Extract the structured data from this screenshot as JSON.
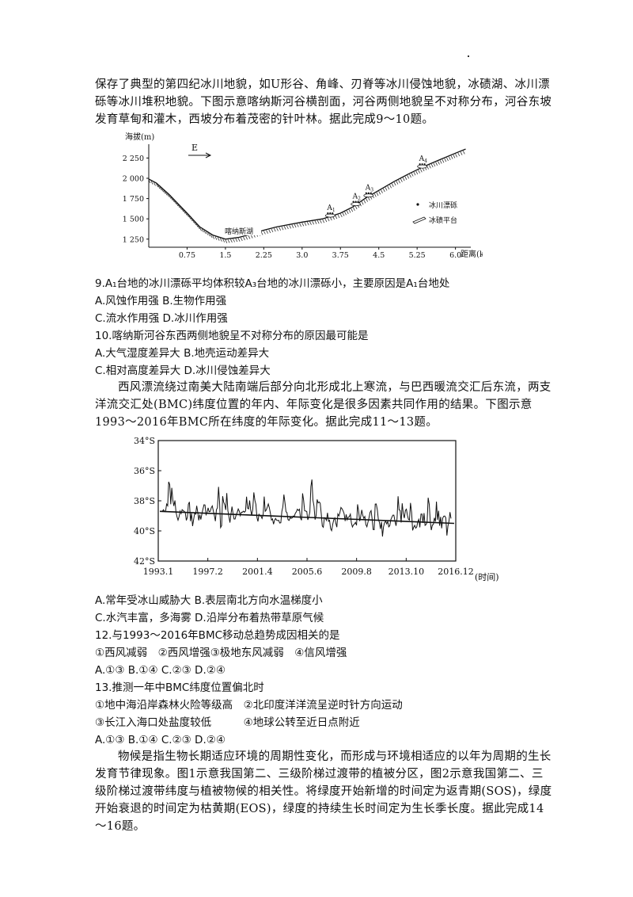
{
  "intro_1": "保存了典型的第四纪冰川地貌，如U形谷、角峰、刃脊等冰川侵蚀地貌，冰碛湖、冰川漂砾等冰川堆积地貌。下图示意喀纳斯河谷横剖面，河谷两侧地貌呈不对称分布，河谷东坡发育草甸和灌木，西坡分布着茂密的针叶林。据此完成9～10题。",
  "fig1": {
    "ylabel": "海拔(m)",
    "xlabel": "距离(km)",
    "direction": "E",
    "lake": "喀纳斯湖",
    "legend_boulder": "冰川漂砾",
    "legend_platform": "冰碛平台",
    "sites": [
      "A",
      "A",
      "A",
      "A"
    ],
    "site_subs": [
      "1",
      "2",
      "3",
      "4"
    ],
    "chart_data": {
      "type": "line",
      "xlabel": "距离(km)",
      "ylabel": "海拔(m)",
      "x_ticks": [
        "0.75",
        "1.5",
        "2.25",
        "3.0",
        "3.75",
        "4.5",
        "5.25",
        "6.0"
      ],
      "y_ticks": [
        "1 250",
        "1 500",
        "1 750",
        "2 000",
        "2 250"
      ],
      "xlim": [
        0,
        6.3
      ],
      "ylim": [
        1150,
        2420
      ],
      "profile_x": [
        0,
        0.15,
        0.4,
        0.75,
        1.0,
        1.25,
        1.5,
        1.75,
        2.0,
        2.25,
        2.5,
        3.0,
        3.4,
        3.75,
        4.0,
        4.25,
        4.5,
        4.8,
        5.1,
        5.4,
        5.7,
        6.0,
        6.2
      ],
      "profile_y": [
        1990,
        1940,
        1800,
        1570,
        1400,
        1300,
        1250,
        1270,
        1310,
        1360,
        1400,
        1460,
        1500,
        1570,
        1650,
        1760,
        1850,
        1960,
        2060,
        2150,
        2230,
        2310,
        2360
      ]
    }
  },
  "q9": "9.A₁台地的冰川漂砾平均体积较A₃台地的冰川漂砾小，主要原因是A₁台地处",
  "q9_opts": "A.风蚀作用强 B.生物作用强",
  "q9_opts2": "C.流水作用强 D.冰川作用强",
  "q10": "10.喀纳斯河谷东西两侧地貌呈不对称分布的原因最可能是",
  "q10_opts": "A.大气湿度差异大 B.地壳运动差异大",
  "q10_opts2": "C.相对高度差异大 D.冰川侵蚀差异大",
  "intro_2": "西风漂流绕过南美大陆南端后部分向北形成北上寒流，与巴西暖流交汇后东流，两支洋流交汇处(BMC)纬度位置的年内、年际变化是很多因素共同作用的结果。下图示意1993～2016年BMC所在纬度的年际变化。据此完成11～13题。",
  "fig2": {
    "time_label": "(时间)",
    "chart_data": {
      "type": "line",
      "x_ticks": [
        "1993.1",
        "1997.2",
        "2001.4",
        "2005.6",
        "2009.8",
        "2013.10",
        "2016.12"
      ],
      "y_ticks": [
        "34°S",
        "36°S",
        "38°S",
        "40°S",
        "42°S"
      ],
      "ylim": [
        34,
        42
      ],
      "trend_start": 38.7,
      "trend_end": 39.5
    }
  },
  "q11_opts": "A.常年受冰山威胁大 B.表层南北方向水温梯度小",
  "q11_opts2": "C.水汽丰富，多海雾 D.沿岸分布着热带草原气候",
  "q12": "12.与1993～2016年BMC移动总趋势成因相关的是",
  "q12_items": "①西风减弱　②西风增强③极地东风减弱　④信风增强",
  "q12_opts": "A.①③ B.①④ C.②③ D.②④",
  "q13": "13.推测一年中BMC纬度位置偏北时",
  "q13_items1": "①地中海沿岸森林火险等级高　②北印度洋洋流呈逆时针方向运动",
  "q13_items2": "③长江入海口处盐度较低　　　④地球公转至近日点附近",
  "q13_opts": "A.①③ B.①④ C.②③ D.②④",
  "intro_3": "物候是指生物长期适应环境的周期性变化，而形成与环境相适应的以年为周期的生长发育节律现象。图1示意我国第二、三级阶梯过渡带的植被分区，图2示意我国第二、三级阶梯过渡带纬度与植被物候的相关性。将绿度开始新增的时间定为返青期(SOS)，绿度开始衰退的时间定为枯黄期(EOS)，绿度的持续生长时间定为生长季长度。据此完成14～16题。"
}
